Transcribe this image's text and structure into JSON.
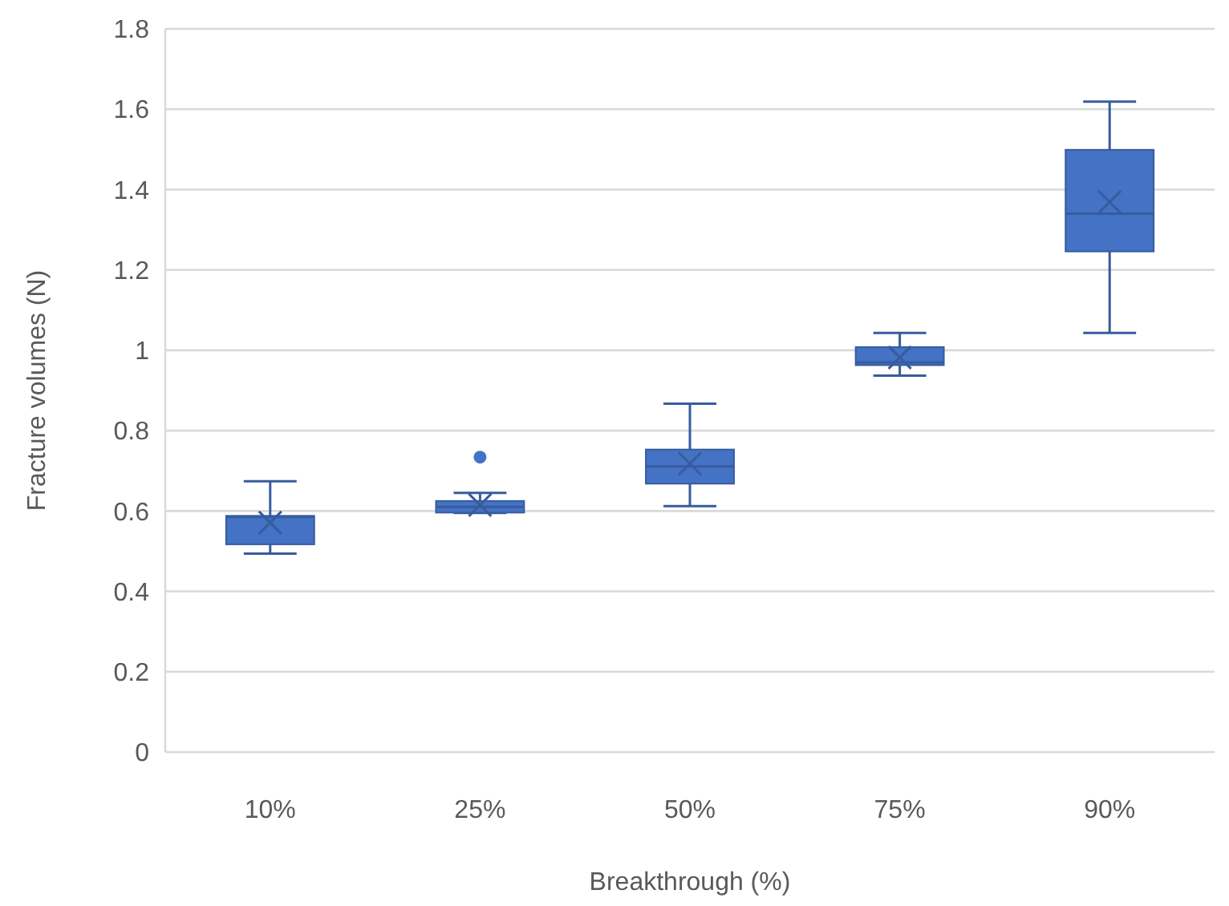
{
  "chart_data": {
    "type": "box",
    "xlabel": "Breakthrough (%)",
    "ylabel": "Fracture volumes (N)",
    "categories": [
      "10%",
      "25%",
      "50%",
      "75%",
      "90%"
    ],
    "color": "#4472c4",
    "ylim": [
      0,
      1.8
    ],
    "yticks": [
      0,
      0.2,
      0.4,
      0.6,
      0.8,
      1,
      1.2,
      1.4,
      1.6,
      1.8
    ],
    "grid": "y",
    "boxes": [
      {
        "low": 0.494,
        "q1": 0.517,
        "median": 0.585,
        "q3": 0.588,
        "high": 0.674,
        "mean": 0.571
      },
      {
        "low": 0.595,
        "q1": 0.596,
        "median": 0.61,
        "q3": 0.625,
        "high": 0.645,
        "mean": 0.615,
        "outliers": [
          0.734
        ]
      },
      {
        "low": 0.612,
        "q1": 0.668,
        "median": 0.711,
        "q3": 0.753,
        "high": 0.867,
        "mean": 0.718
      },
      {
        "low": 0.937,
        "q1": 0.963,
        "median": 0.97,
        "q3": 1.008,
        "high": 1.043,
        "mean": 0.982
      },
      {
        "low": 1.043,
        "q1": 1.246,
        "median": 1.34,
        "q3": 1.499,
        "high": 1.619,
        "mean": 1.369
      }
    ]
  }
}
